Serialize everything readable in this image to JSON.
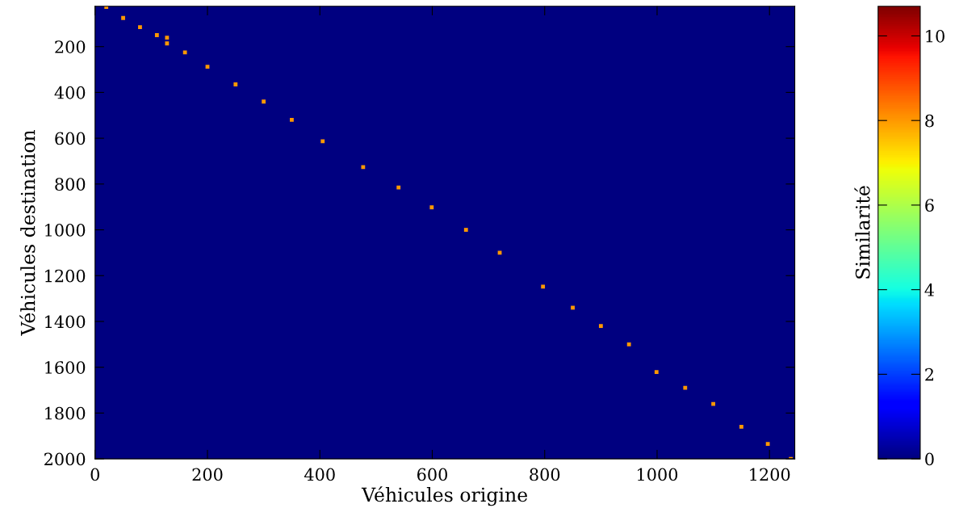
{
  "chart_data": {
    "type": "scatter",
    "xlabel": "Véhicules origine",
    "ylabel": "Véhicules destination",
    "clabel": "Similarité",
    "x": [
      20,
      50,
      80,
      110,
      128,
      128,
      160,
      200,
      250,
      300,
      350,
      405,
      477,
      540,
      599,
      660,
      720,
      797,
      850,
      900,
      950,
      999,
      1050,
      1100,
      1150,
      1197,
      1238
    ],
    "values": [
      27,
      75,
      115,
      150,
      161,
      186,
      225,
      288,
      365,
      440,
      520,
      613,
      726,
      815,
      902,
      1000,
      1100,
      1248,
      1340,
      1420,
      1500,
      1621,
      1690,
      1760,
      1860,
      1935,
      2000
    ],
    "cvalues": [
      8,
      8,
      8,
      8,
      8,
      8,
      8,
      8,
      8,
      8,
      8,
      8,
      8,
      8,
      8,
      8,
      8,
      8,
      8,
      8,
      8,
      8,
      8,
      8,
      8,
      8,
      8
    ],
    "marker": "square",
    "xlim": [
      0,
      1245
    ],
    "ylim": [
      2000,
      24
    ],
    "xticks": [
      0,
      200,
      400,
      600,
      800,
      1000,
      1200
    ],
    "yticks": [
      200,
      400,
      600,
      800,
      1000,
      1200,
      1400,
      1600,
      1800,
      2000
    ],
    "clim": [
      0,
      10.7
    ],
    "cticks": [
      0,
      2,
      4,
      6,
      8,
      10
    ],
    "grid": false
  }
}
